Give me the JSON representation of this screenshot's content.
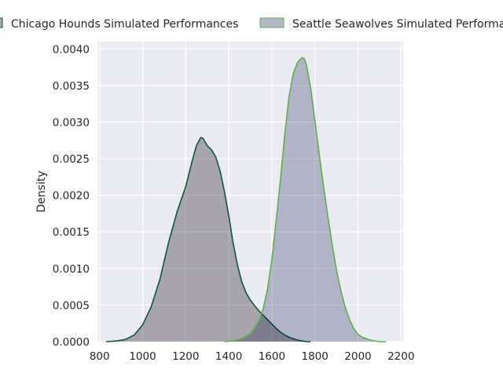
{
  "chart_data": {
    "type": "area",
    "title": "",
    "xlabel": "",
    "ylabel": "Density",
    "xlim": [
      790,
      2210
    ],
    "ylim": [
      0,
      0.0041
    ],
    "xticks": [
      "800",
      "1000",
      "1200",
      "1400",
      "1600",
      "1800",
      "2000",
      "2200"
    ],
    "yticks": [
      "0.0000",
      "0.0005",
      "0.0010",
      "0.0015",
      "0.0020",
      "0.0025",
      "0.0030",
      "0.0035",
      "0.0040"
    ],
    "grid": true,
    "legend_position": "top",
    "series": [
      {
        "name": "Chicago Hounds Simulated Performances",
        "line_color": "#0b5a37",
        "fill_color": "#a9a6ac",
        "x": [
          830,
          880,
          920,
          960,
          1000,
          1040,
          1080,
          1120,
          1160,
          1200,
          1230,
          1250,
          1270,
          1280,
          1300,
          1320,
          1340,
          1360,
          1380,
          1400,
          1420,
          1440,
          1460,
          1480,
          1500,
          1520,
          1540,
          1560,
          1580,
          1600,
          1620,
          1640,
          1660,
          1680,
          1700,
          1720,
          1740,
          1760,
          1780
        ],
        "y": [
          0.0,
          1e-05,
          3e-05,
          9e-05,
          0.00023,
          0.00048,
          0.00085,
          0.00135,
          0.00178,
          0.00212,
          0.00247,
          0.00268,
          0.00279,
          0.00278,
          0.00268,
          0.00262,
          0.00252,
          0.00233,
          0.00205,
          0.00172,
          0.00135,
          0.00105,
          0.00082,
          0.00067,
          0.00057,
          0.00049,
          0.00042,
          0.00036,
          0.0003,
          0.00024,
          0.00018,
          0.00013,
          9e-05,
          6e-05,
          4e-05,
          2e-05,
          1e-05,
          0.0,
          0.0
        ]
      },
      {
        "name": "Seattle Seawolves Simulated Performances",
        "line_color": "#5bb14a",
        "fill_color": "#b6b8ca",
        "x": [
          1380,
          1420,
          1460,
          1500,
          1540,
          1560,
          1580,
          1600,
          1620,
          1640,
          1660,
          1680,
          1700,
          1720,
          1740,
          1750,
          1760,
          1780,
          1800,
          1820,
          1840,
          1860,
          1880,
          1900,
          1920,
          1940,
          1960,
          1980,
          2000,
          2020,
          2040,
          2060,
          2080,
          2100,
          2130
        ],
        "y": [
          0.0,
          1e-05,
          4e-05,
          0.00011,
          0.00028,
          0.00045,
          0.00072,
          0.00112,
          0.00165,
          0.00222,
          0.00283,
          0.00335,
          0.00367,
          0.00382,
          0.00388,
          0.00387,
          0.00379,
          0.00347,
          0.00302,
          0.00256,
          0.00213,
          0.00172,
          0.00133,
          0.00098,
          0.0007,
          0.00048,
          0.00031,
          0.00018,
          0.0001,
          6e-05,
          4e-05,
          2e-05,
          1e-05,
          0.0,
          0.0
        ]
      }
    ]
  }
}
